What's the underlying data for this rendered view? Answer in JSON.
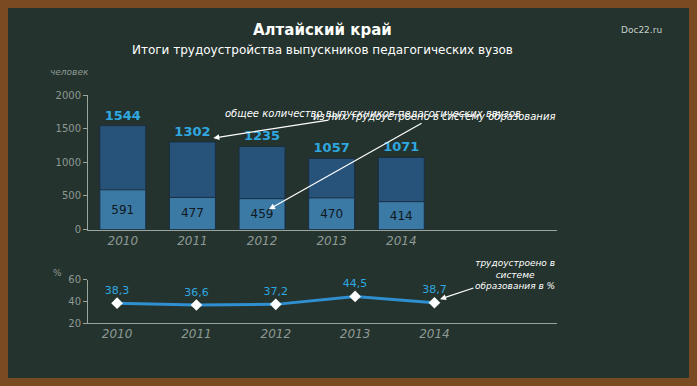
{
  "chart_data": [
    {
      "type": "bar",
      "title": "Алтайский край",
      "subtitle": "Итоги трудоустройства выпускников педагогических вузов",
      "annotations": [
        "Doc22.ru"
      ],
      "y_label": "человек",
      "categories": [
        "2010",
        "2011",
        "2012",
        "2013",
        "2014"
      ],
      "series": [
        {
          "name": "общее количество выпускников педагогических ввузов",
          "color": "#27537a",
          "values": [
            1544,
            1302,
            1235,
            1057,
            1071
          ]
        },
        {
          "name": "из них трудоустроено в систему образования",
          "color": "#3b7aa5",
          "values": [
            591,
            477,
            459,
            470,
            414
          ]
        }
      ],
      "stacked": false,
      "data_labels": true,
      "ylim": [
        0,
        2000
      ],
      "yticks": [
        0,
        500,
        1000,
        1500,
        2000
      ],
      "grid": false
    },
    {
      "type": "line",
      "y_label": "%",
      "annotations": [
        "трудоустроено в\nсистеме\nобразования в %"
      ],
      "categories": [
        "2010",
        "2011",
        "2012",
        "2013",
        "2014"
      ],
      "values": [
        38.3,
        36.6,
        37.2,
        44.5,
        38.7
      ],
      "value_labels": [
        "38,3",
        "36,6",
        "37,2",
        "44,5",
        "38,7"
      ],
      "color": "#2f8fd0",
      "marker": "diamond",
      "data_labels": true,
      "ylim": [
        20,
        60
      ],
      "yticks": [
        20,
        40,
        60
      ],
      "grid": false
    }
  ]
}
